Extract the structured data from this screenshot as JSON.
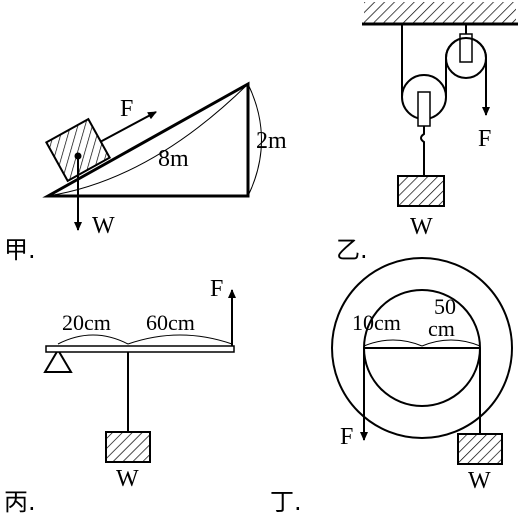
{
  "panels": {
    "jia": {
      "caption": "甲.",
      "force_label": "F",
      "weight_label": "W",
      "length_label": "8m",
      "height_label": "2m"
    },
    "yi": {
      "caption": "乙.",
      "force_label": "F",
      "weight_label": "W"
    },
    "bing": {
      "caption": "丙.",
      "force_label": "F",
      "weight_label": "W",
      "dist1_label": "20cm",
      "dist2_label": "60cm"
    },
    "ding": {
      "caption": "丁.",
      "force_label": "F",
      "weight_label": "W",
      "small_radius_label": "10cm",
      "large_radius_label_line1": "50",
      "large_radius_label_line2": "cm"
    }
  }
}
